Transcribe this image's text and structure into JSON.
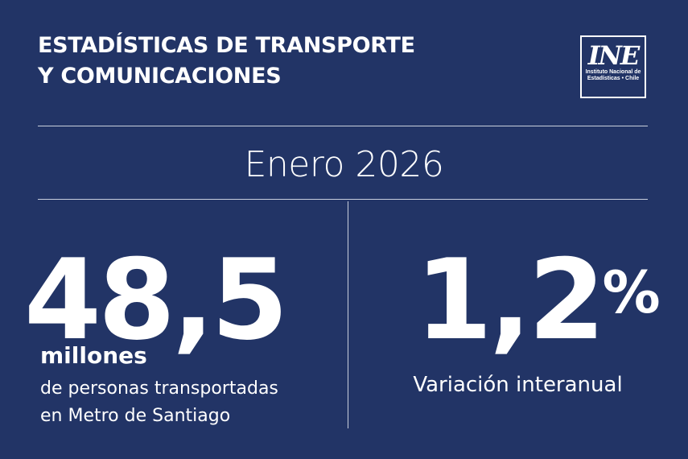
{
  "header": {
    "title_line1": "ESTADÍSTICAS DE TRANSPORTE",
    "title_line2": "Y COMUNICACIONES",
    "logo": {
      "mark": "INE",
      "subtitle_line1": "Instituto Nacional de",
      "subtitle_line2": "Estadísticas • Chile"
    }
  },
  "period": "Enero 2026",
  "left_stat": {
    "value": "48,5",
    "unit": "millones",
    "desc_line1": "de personas transportadas",
    "desc_line2": "en Metro de Santiago"
  },
  "right_stat": {
    "value": "1,2",
    "symbol": "%",
    "label": "Variación interanual"
  },
  "colors": {
    "background": "#223466",
    "text": "#ffffff",
    "rules": "#c9cfdd"
  }
}
